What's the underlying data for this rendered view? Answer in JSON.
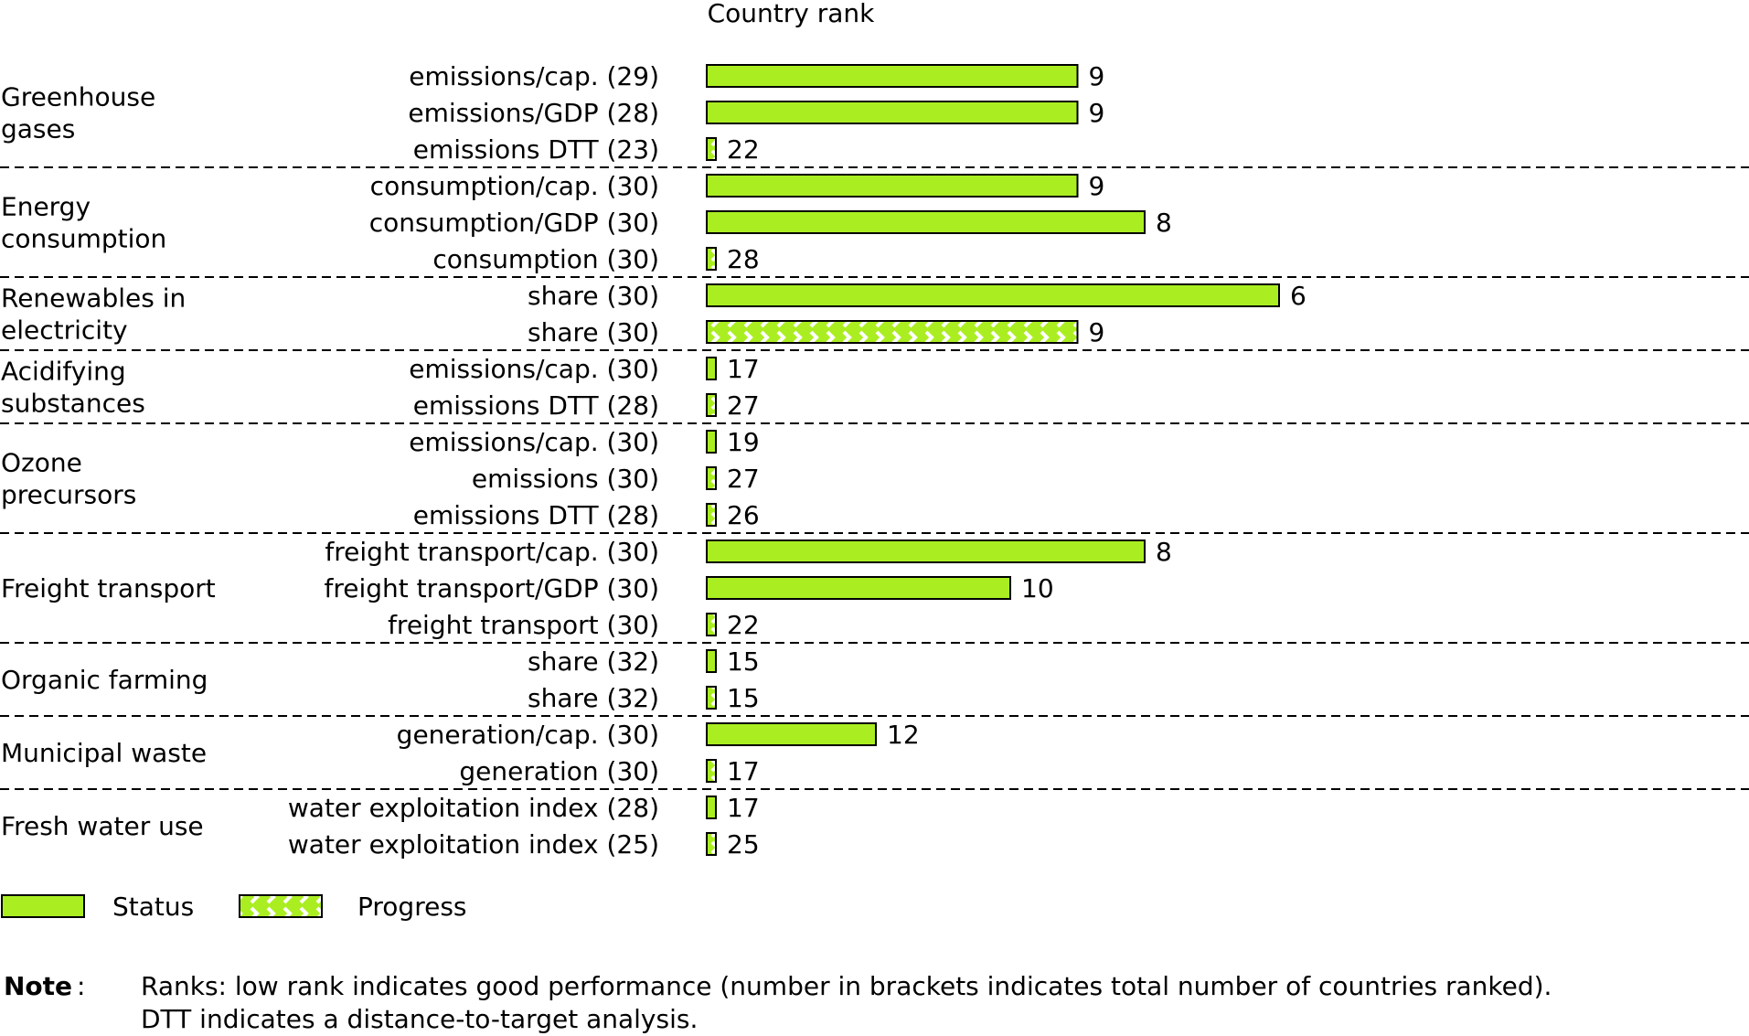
{
  "chart_data": {
    "type": "bar",
    "orientation": "horizontal",
    "title": "Country rank",
    "legend": [
      {
        "name": "Status",
        "pattern": "solid"
      },
      {
        "name": "Progress",
        "pattern": "chevron"
      }
    ],
    "legend_position": "bottom-left",
    "groups": [
      {
        "label": [
          "Greenhouse",
          "gases"
        ],
        "rows": [
          {
            "label": "emissions/cap. (29)",
            "value": 9,
            "kind": "status"
          },
          {
            "label": "emissions/GDP (28)",
            "value": 9,
            "kind": "status"
          },
          {
            "label": "emissions DTT (23)",
            "value": 22,
            "kind": "progress"
          }
        ]
      },
      {
        "label": [
          "Energy",
          "consumption"
        ],
        "rows": [
          {
            "label": "consumption/cap. (30)",
            "value": 9,
            "kind": "status"
          },
          {
            "label": "consumption/GDP (30)",
            "value": 8,
            "kind": "status"
          },
          {
            "label": "consumption (30)",
            "value": 28,
            "kind": "progress"
          }
        ]
      },
      {
        "label": [
          "Renewables in",
          "electricity"
        ],
        "rows": [
          {
            "label": "share (30)",
            "value": 6,
            "kind": "status"
          },
          {
            "label": "share (30)",
            "value": 9,
            "kind": "progress"
          }
        ]
      },
      {
        "label": [
          "Acidifying",
          "substances"
        ],
        "rows": [
          {
            "label": "emissions/cap. (30)",
            "value": 17,
            "kind": "status"
          },
          {
            "label": "emissions DTT (28)",
            "value": 27,
            "kind": "progress"
          }
        ]
      },
      {
        "label": [
          "Ozone",
          "precursors"
        ],
        "rows": [
          {
            "label": "emissions/cap. (30)",
            "value": 19,
            "kind": "status"
          },
          {
            "label": "emissions (30)",
            "value": 27,
            "kind": "progress"
          },
          {
            "label": "emissions DTT (28)",
            "value": 26,
            "kind": "progress"
          }
        ]
      },
      {
        "label": [
          "Freight transport"
        ],
        "rows": [
          {
            "label": "freight transport/cap. (30)",
            "value": 8,
            "kind": "status"
          },
          {
            "label": "freight transport/GDP (30)",
            "value": 10,
            "kind": "status"
          },
          {
            "label": "freight transport (30)",
            "value": 22,
            "kind": "progress"
          }
        ]
      },
      {
        "label": [
          "Organic farming"
        ],
        "rows": [
          {
            "label": "share (32)",
            "value": 15,
            "kind": "status"
          },
          {
            "label": "share (32)",
            "value": 15,
            "kind": "progress"
          }
        ]
      },
      {
        "label": [
          "Municipal waste"
        ],
        "rows": [
          {
            "label": "generation/cap. (30)",
            "value": 12,
            "kind": "status"
          },
          {
            "label": "generation (30)",
            "value": 17,
            "kind": "progress"
          }
        ]
      },
      {
        "label": [
          "Fresh water use"
        ],
        "rows": [
          {
            "label": "water exploitation index (28)",
            "value": 17,
            "kind": "status"
          },
          {
            "label": "water exploitation index (25)",
            "value": 25,
            "kind": "progress"
          }
        ]
      }
    ],
    "colors": {
      "bar_fill": "#aaee22",
      "chevron": "#ffffff",
      "outline": "#000000"
    }
  },
  "note": {
    "label": "Note",
    "lines": [
      "Ranks: low rank indicates good performance (number in brackets indicates total number of countries ranked).",
      "DTT indicates a distance-to-target analysis."
    ]
  }
}
